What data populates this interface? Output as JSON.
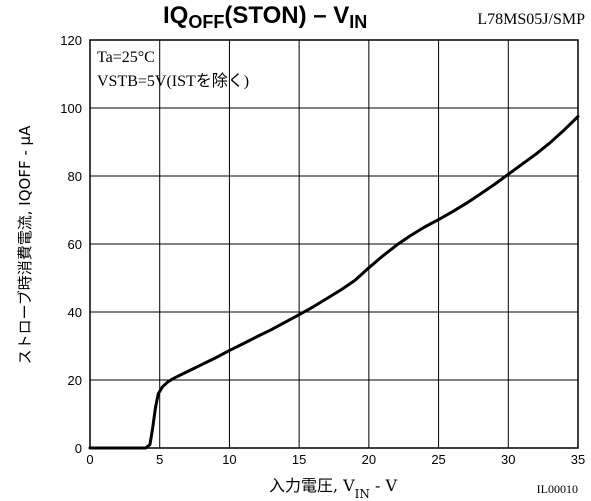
{
  "chart_data": {
    "type": "line",
    "title_main_a": "IQ",
    "title_main_sub1": "OFF",
    "title_main_b": "(STON)  –  V",
    "title_main_sub2": "IN",
    "title_part": "L78MS05J/SMP",
    "annotations": [
      "Ta=25°C",
      "VSTB=5V(ISTを除く)"
    ],
    "xlabel_main": "入力電圧, V",
    "xlabel_sub": "IN",
    "xlabel_unit": " - V",
    "ylabel": "ストローブ時消費電流, IQOFF - μA",
    "figure_code": "IL00010",
    "xlim": [
      0,
      35
    ],
    "ylim": [
      0,
      120
    ],
    "x_ticks": [
      0,
      5,
      10,
      15,
      20,
      25,
      30,
      35
    ],
    "y_ticks": [
      0,
      20,
      40,
      60,
      80,
      100,
      120
    ],
    "grid": true,
    "series": [
      {
        "color": "#000000",
        "x": [
          0,
          3.5,
          4.0,
          4.3,
          4.5,
          4.7,
          4.9,
          5.2,
          5.6,
          6.0,
          7,
          8,
          9,
          10,
          11,
          12,
          13,
          14,
          15,
          16,
          17,
          18,
          19,
          20,
          21,
          22,
          23,
          24,
          25,
          26,
          27,
          28,
          29,
          30,
          31,
          32,
          33,
          34,
          35
        ],
        "y": [
          0,
          0,
          0,
          1,
          6,
          12,
          16,
          18,
          19.5,
          20.5,
          22.5,
          24.5,
          26.5,
          28.7,
          30.7,
          32.8,
          34.8,
          37,
          39.2,
          41.5,
          44,
          46.5,
          49.3,
          53,
          56.5,
          59.7,
          62.5,
          65,
          67.2,
          69.5,
          72,
          74.7,
          77.5,
          80.5,
          83.5,
          86.5,
          89.8,
          93.5,
          97.5
        ]
      }
    ]
  }
}
